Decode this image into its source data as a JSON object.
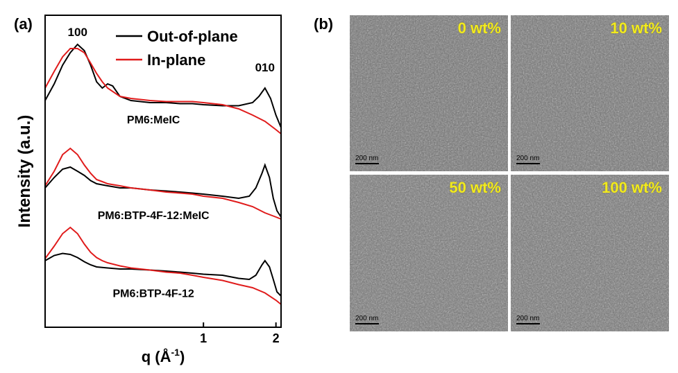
{
  "panel_a": {
    "label": "(a)"
  },
  "panel_b": {
    "label": "(b)",
    "images": [
      {
        "label": "0 wt%",
        "scale": "200 nm"
      },
      {
        "label": "10 wt%",
        "scale": "200 nm"
      },
      {
        "label": "50 wt%",
        "scale": "200 nm"
      },
      {
        "label": "100 wt%",
        "scale": "200 nm"
      }
    ]
  },
  "chart_data": {
    "type": "line",
    "xlabel": "q (Å",
    "xlabel_exponent": "-1",
    "xlabel_close": ")",
    "ylabel": "Intensity (a.u.)",
    "x_scale": "log",
    "xlim": [
      0.22,
      2.1
    ],
    "ylim": [
      0,
      15
    ],
    "xticks": [
      1,
      2
    ],
    "xtick_labels": [
      "1",
      "2"
    ],
    "grid": false,
    "legend_position": "top-right",
    "legend": [
      {
        "name": "Out-of-plane",
        "color": "#000000"
      },
      {
        "name": "In-plane",
        "color": "#e01b1b"
      }
    ],
    "peak_labels": [
      {
        "text": "100",
        "x": 0.3,
        "y": 14.0
      },
      {
        "text": "010",
        "x": 1.8,
        "y": 12.3
      }
    ],
    "sample_labels": [
      {
        "text": "PM6:MeIC",
        "x": 0.62,
        "y": 9.8
      },
      {
        "text": "PM6:BTP-4F-12:MeIC",
        "x": 0.62,
        "y": 5.2
      },
      {
        "text": "PM6:BTP-4F-12",
        "x": 0.62,
        "y": 1.45
      }
    ],
    "series": [
      {
        "name": "Out-of-plane",
        "sample": "PM6:MeIC",
        "color": "#000000",
        "x": [
          0.22,
          0.24,
          0.26,
          0.28,
          0.3,
          0.32,
          0.34,
          0.36,
          0.38,
          0.4,
          0.42,
          0.45,
          0.5,
          0.6,
          0.7,
          0.8,
          0.9,
          1.0,
          1.2,
          1.4,
          1.6,
          1.7,
          1.8,
          1.9,
          2.0,
          2.1
        ],
        "y": [
          10.9,
          11.7,
          12.6,
          13.2,
          13.6,
          13.3,
          12.6,
          11.8,
          11.5,
          11.7,
          11.6,
          11.1,
          10.9,
          10.8,
          10.8,
          10.75,
          10.75,
          10.7,
          10.65,
          10.65,
          10.8,
          11.1,
          11.5,
          11.0,
          10.2,
          9.6
        ]
      },
      {
        "name": "In-plane",
        "sample": "PM6:MeIC",
        "color": "#e01b1b",
        "x": [
          0.22,
          0.24,
          0.26,
          0.28,
          0.3,
          0.32,
          0.34,
          0.36,
          0.38,
          0.4,
          0.45,
          0.5,
          0.6,
          0.7,
          0.8,
          0.9,
          1.0,
          1.2,
          1.4,
          1.6,
          1.8,
          2.0,
          2.1
        ],
        "y": [
          11.5,
          12.3,
          13.0,
          13.4,
          13.4,
          13.2,
          12.7,
          12.2,
          11.8,
          11.5,
          11.1,
          11.0,
          10.9,
          10.85,
          10.85,
          10.85,
          10.8,
          10.7,
          10.5,
          10.2,
          9.9,
          9.5,
          9.3
        ]
      },
      {
        "name": "Out-of-plane",
        "sample": "PM6:BTP-4F-12:MeIC",
        "color": "#000000",
        "x": [
          0.22,
          0.24,
          0.26,
          0.28,
          0.3,
          0.32,
          0.34,
          0.36,
          0.4,
          0.45,
          0.5,
          0.6,
          0.7,
          0.8,
          0.9,
          1.0,
          1.2,
          1.4,
          1.55,
          1.65,
          1.75,
          1.8,
          1.88,
          1.95,
          2.02,
          2.1
        ],
        "y": [
          6.7,
          7.2,
          7.6,
          7.7,
          7.5,
          7.3,
          7.05,
          6.9,
          6.8,
          6.7,
          6.7,
          6.6,
          6.55,
          6.5,
          6.45,
          6.4,
          6.3,
          6.2,
          6.3,
          6.7,
          7.4,
          7.8,
          7.2,
          6.2,
          5.6,
          5.3
        ]
      },
      {
        "name": "In-plane",
        "sample": "PM6:BTP-4F-12:MeIC",
        "color": "#e01b1b",
        "x": [
          0.22,
          0.24,
          0.26,
          0.28,
          0.3,
          0.32,
          0.34,
          0.36,
          0.38,
          0.4,
          0.45,
          0.5,
          0.6,
          0.7,
          0.8,
          0.9,
          1.0,
          1.2,
          1.4,
          1.6,
          1.8,
          2.0,
          2.1
        ],
        "y": [
          6.8,
          7.5,
          8.3,
          8.6,
          8.3,
          7.8,
          7.4,
          7.1,
          7.0,
          6.9,
          6.8,
          6.7,
          6.6,
          6.5,
          6.45,
          6.4,
          6.3,
          6.2,
          6.0,
          5.8,
          5.5,
          5.3,
          5.2
        ]
      },
      {
        "name": "Out-of-plane",
        "sample": "PM6:BTP-4F-12",
        "color": "#000000",
        "x": [
          0.22,
          0.24,
          0.26,
          0.28,
          0.3,
          0.32,
          0.34,
          0.36,
          0.4,
          0.45,
          0.5,
          0.6,
          0.7,
          0.8,
          0.9,
          1.0,
          1.2,
          1.4,
          1.55,
          1.65,
          1.75,
          1.8,
          1.88,
          1.95,
          2.02,
          2.1
        ],
        "y": [
          3.2,
          3.45,
          3.55,
          3.5,
          3.35,
          3.15,
          3.0,
          2.9,
          2.85,
          2.8,
          2.8,
          2.75,
          2.7,
          2.65,
          2.6,
          2.55,
          2.5,
          2.35,
          2.3,
          2.5,
          3.0,
          3.2,
          2.9,
          2.3,
          1.7,
          1.5
        ]
      },
      {
        "name": "In-plane",
        "sample": "PM6:BTP-4F-12",
        "color": "#e01b1b",
        "x": [
          0.22,
          0.24,
          0.26,
          0.28,
          0.3,
          0.32,
          0.34,
          0.36,
          0.38,
          0.4,
          0.45,
          0.5,
          0.6,
          0.7,
          0.8,
          0.9,
          1.0,
          1.2,
          1.4,
          1.6,
          1.8,
          2.0,
          2.1
        ],
        "y": [
          3.3,
          3.9,
          4.5,
          4.8,
          4.5,
          4.0,
          3.6,
          3.35,
          3.2,
          3.1,
          2.95,
          2.85,
          2.75,
          2.65,
          2.6,
          2.5,
          2.4,
          2.25,
          2.05,
          1.9,
          1.65,
          1.3,
          1.1
        ]
      }
    ]
  }
}
